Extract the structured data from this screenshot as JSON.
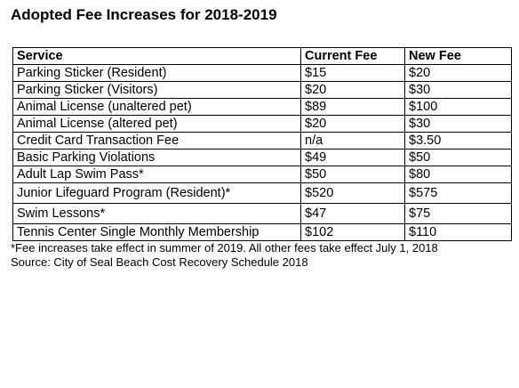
{
  "title": "Adopted Fee Increases for 2018-2019",
  "table": {
    "headers": [
      "Service",
      "Current Fee",
      "New Fee"
    ],
    "rows": [
      [
        "Parking Sticker (Resident)",
        "$15",
        "$20"
      ],
      [
        "Parking Sticker (Visitors)",
        "$20",
        "$30"
      ],
      [
        "Animal License (unaltered pet)",
        "$89",
        "$100"
      ],
      [
        "Animal License (altered pet)",
        "$20",
        "$30"
      ],
      [
        "Credit Card Transaction Fee",
        "n/a",
        "$3.50"
      ],
      [
        "Basic Parking Violations",
        "$49",
        "$50"
      ],
      [
        "Adult Lap Swim Pass*",
        "$50",
        "$80"
      ],
      [
        "Junior Lifeguard Program (Resident)*",
        "$520",
        "$575"
      ],
      [
        "Swim Lessons*",
        "$47",
        "$75"
      ],
      [
        "Tennis Center Single Monthly Membership",
        "$102",
        "$110"
      ]
    ]
  },
  "notes": {
    "footnote": "*Fee increases take effect in summer of 2019. All other fees take effect July 1, 2018",
    "source": "Source: City of Seal Beach Cost Recovery Schedule 2018"
  }
}
